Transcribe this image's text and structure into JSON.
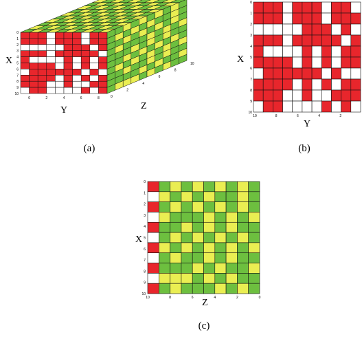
{
  "colors": {
    "red": "#e8262c",
    "white": "#ffffff",
    "green": "#6dbf3f",
    "yellow": "#eaee52",
    "grid": "#111111"
  },
  "panels": {
    "a": {
      "caption": "(a)",
      "x_label": "X",
      "y_label": "Y",
      "z_label": "Z",
      "x_ticks": [
        "0",
        "1",
        "2",
        "3",
        "4",
        "5",
        "6",
        "7",
        "8",
        "9",
        "10"
      ],
      "y_ticks": [
        "8",
        "6",
        "4",
        "2",
        "0"
      ],
      "z_ticks": [
        "0",
        "2",
        "4",
        "6",
        "8",
        "10"
      ]
    },
    "b": {
      "caption": "(b)",
      "x_label": "X",
      "y_label": "Y",
      "x_ticks": [
        "0",
        "1",
        "2",
        "3",
        "4",
        "5",
        "6",
        "7",
        "8",
        "9",
        "10"
      ],
      "y_ticks": [
        "10",
        "8",
        "6",
        "4",
        "2"
      ],
      "grid": [
        "RRRWRRRWRRW",
        "RRRWRRRWRRR",
        "WWWWWRRRWRW",
        "RRRWRRRRRWR",
        "RWWWWRWRWRR",
        "RRRRWRWRWRR",
        "WRRRRRRWRWW",
        "RRRRWRWRWRR",
        "RRRWWRWWRRR",
        "WRRWWWWRWRW"
      ]
    },
    "c": {
      "caption": "(c)",
      "x_label": "X",
      "z_label": "Z",
      "x_ticks": [
        "0",
        "1",
        "2",
        "3",
        "4",
        "5",
        "6",
        "7",
        "8",
        "9",
        "10"
      ],
      "z_ticks": [
        "10",
        "8",
        "6",
        "4",
        "2",
        "0"
      ],
      "grid": [
        "RGYGYGYGYG",
        "WYGYGYGGYG",
        "RGYGYGYGYG",
        "WYGGGYGYGY",
        "RGGYGYGYGG",
        "WGYGYGYGYG",
        "RYGYGYGYGY",
        "WGYGGYGYGG",
        "RGGGYGYGGY",
        "WYYYGYGYGG",
        "RGYGGGYGYG"
      ]
    }
  }
}
